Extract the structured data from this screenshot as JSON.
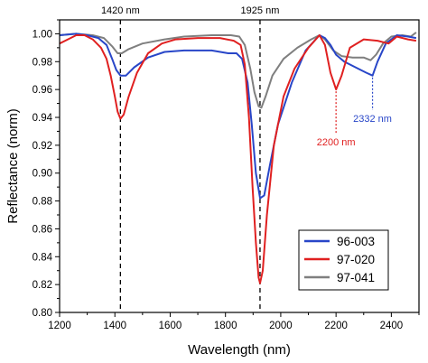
{
  "chart_data": {
    "type": "line",
    "xlabel": "Wavelength (nm)",
    "ylabel": "Reflectance (norm)",
    "xlim": [
      1200,
      2500
    ],
    "ylim": [
      0.8,
      1.01
    ],
    "x_ticks": [
      1200,
      1400,
      1600,
      1800,
      2000,
      2200,
      2400
    ],
    "y_ticks": [
      0.8,
      0.82,
      0.84,
      0.86,
      0.88,
      0.9,
      0.92,
      0.94,
      0.96,
      0.98,
      1.0
    ],
    "x_tick_labels": [
      "1200",
      "1400",
      "1600",
      "1800",
      "2000",
      "2200",
      "2400"
    ],
    "y_tick_labels": [
      "0.80",
      "0.82",
      "0.84",
      "0.86",
      "0.88",
      "0.90",
      "0.92",
      "0.94",
      "0.96",
      "0.98",
      "1.00"
    ],
    "legend_position": "bottom-right",
    "series": [
      {
        "name": "96-003",
        "color": "#2846c8",
        "points": [
          [
            1200,
            0.999
          ],
          [
            1260,
            1.0
          ],
          [
            1300,
            0.999
          ],
          [
            1340,
            0.997
          ],
          [
            1370,
            0.992
          ],
          [
            1390,
            0.982
          ],
          [
            1405,
            0.974
          ],
          [
            1420,
            0.97
          ],
          [
            1440,
            0.97
          ],
          [
            1470,
            0.976
          ],
          [
            1520,
            0.983
          ],
          [
            1580,
            0.987
          ],
          [
            1650,
            0.988
          ],
          [
            1750,
            0.988
          ],
          [
            1810,
            0.986
          ],
          [
            1840,
            0.986
          ],
          [
            1860,
            0.982
          ],
          [
            1880,
            0.965
          ],
          [
            1895,
            0.935
          ],
          [
            1910,
            0.9
          ],
          [
            1925,
            0.882
          ],
          [
            1940,
            0.884
          ],
          [
            1960,
            0.905
          ],
          [
            1990,
            0.935
          ],
          [
            2040,
            0.965
          ],
          [
            2090,
            0.988
          ],
          [
            2140,
            0.999
          ],
          [
            2160,
            0.997
          ],
          [
            2180,
            0.992
          ],
          [
            2200,
            0.985
          ],
          [
            2230,
            0.98
          ],
          [
            2270,
            0.976
          ],
          [
            2310,
            0.972
          ],
          [
            2332,
            0.97
          ],
          [
            2350,
            0.98
          ],
          [
            2380,
            0.993
          ],
          [
            2420,
            0.999
          ],
          [
            2460,
            0.998
          ],
          [
            2490,
            0.997
          ]
        ]
      },
      {
        "name": "97-020",
        "color": "#e02020",
        "points": [
          [
            1200,
            0.993
          ],
          [
            1230,
            0.996
          ],
          [
            1260,
            0.999
          ],
          [
            1290,
            0.999
          ],
          [
            1320,
            0.996
          ],
          [
            1350,
            0.99
          ],
          [
            1370,
            0.982
          ],
          [
            1385,
            0.97
          ],
          [
            1400,
            0.955
          ],
          [
            1410,
            0.944
          ],
          [
            1420,
            0.939
          ],
          [
            1432,
            0.942
          ],
          [
            1450,
            0.955
          ],
          [
            1480,
            0.972
          ],
          [
            1520,
            0.986
          ],
          [
            1570,
            0.993
          ],
          [
            1620,
            0.996
          ],
          [
            1700,
            0.997
          ],
          [
            1780,
            0.997
          ],
          [
            1830,
            0.995
          ],
          [
            1855,
            0.992
          ],
          [
            1870,
            0.978
          ],
          [
            1885,
            0.94
          ],
          [
            1898,
            0.89
          ],
          [
            1910,
            0.85
          ],
          [
            1920,
            0.825
          ],
          [
            1925,
            0.821
          ],
          [
            1935,
            0.83
          ],
          [
            1950,
            0.87
          ],
          [
            1975,
            0.92
          ],
          [
            2010,
            0.955
          ],
          [
            2050,
            0.975
          ],
          [
            2100,
            0.99
          ],
          [
            2140,
            0.999
          ],
          [
            2160,
            0.992
          ],
          [
            2180,
            0.972
          ],
          [
            2200,
            0.96
          ],
          [
            2220,
            0.97
          ],
          [
            2250,
            0.99
          ],
          [
            2300,
            0.996
          ],
          [
            2350,
            0.995
          ],
          [
            2390,
            0.993
          ],
          [
            2420,
            0.998
          ],
          [
            2460,
            0.996
          ],
          [
            2490,
            0.995
          ]
        ]
      },
      {
        "name": "97-041",
        "color": "#7f7f7f",
        "points": [
          [
            1200,
            0.999
          ],
          [
            1260,
            1.0
          ],
          [
            1320,
            0.999
          ],
          [
            1360,
            0.997
          ],
          [
            1390,
            0.991
          ],
          [
            1410,
            0.986
          ],
          [
            1425,
            0.986
          ],
          [
            1450,
            0.989
          ],
          [
            1500,
            0.993
          ],
          [
            1580,
            0.996
          ],
          [
            1650,
            0.998
          ],
          [
            1750,
            0.999
          ],
          [
            1820,
            0.999
          ],
          [
            1850,
            0.998
          ],
          [
            1870,
            0.992
          ],
          [
            1890,
            0.975
          ],
          [
            1905,
            0.958
          ],
          [
            1920,
            0.948
          ],
          [
            1930,
            0.947
          ],
          [
            1945,
            0.955
          ],
          [
            1970,
            0.97
          ],
          [
            2010,
            0.982
          ],
          [
            2060,
            0.99
          ],
          [
            2110,
            0.996
          ],
          [
            2140,
            0.999
          ],
          [
            2160,
            0.996
          ],
          [
            2190,
            0.988
          ],
          [
            2220,
            0.984
          ],
          [
            2260,
            0.983
          ],
          [
            2300,
            0.983
          ],
          [
            2325,
            0.981
          ],
          [
            2345,
            0.985
          ],
          [
            2370,
            0.993
          ],
          [
            2400,
            0.998
          ],
          [
            2440,
            0.999
          ],
          [
            2470,
            0.998
          ],
          [
            2490,
            1.001
          ]
        ]
      }
    ],
    "reference_lines": [
      {
        "x": 1420,
        "label": "1420 nm"
      },
      {
        "x": 1925,
        "label": "1925 nm"
      }
    ],
    "annotations": [
      {
        "label": "2200 nm",
        "x": 2200,
        "y": 0.96,
        "color": "#e02020"
      },
      {
        "label": "2332 nm",
        "x": 2332,
        "y": 0.97,
        "color": "#2846c8"
      }
    ]
  }
}
